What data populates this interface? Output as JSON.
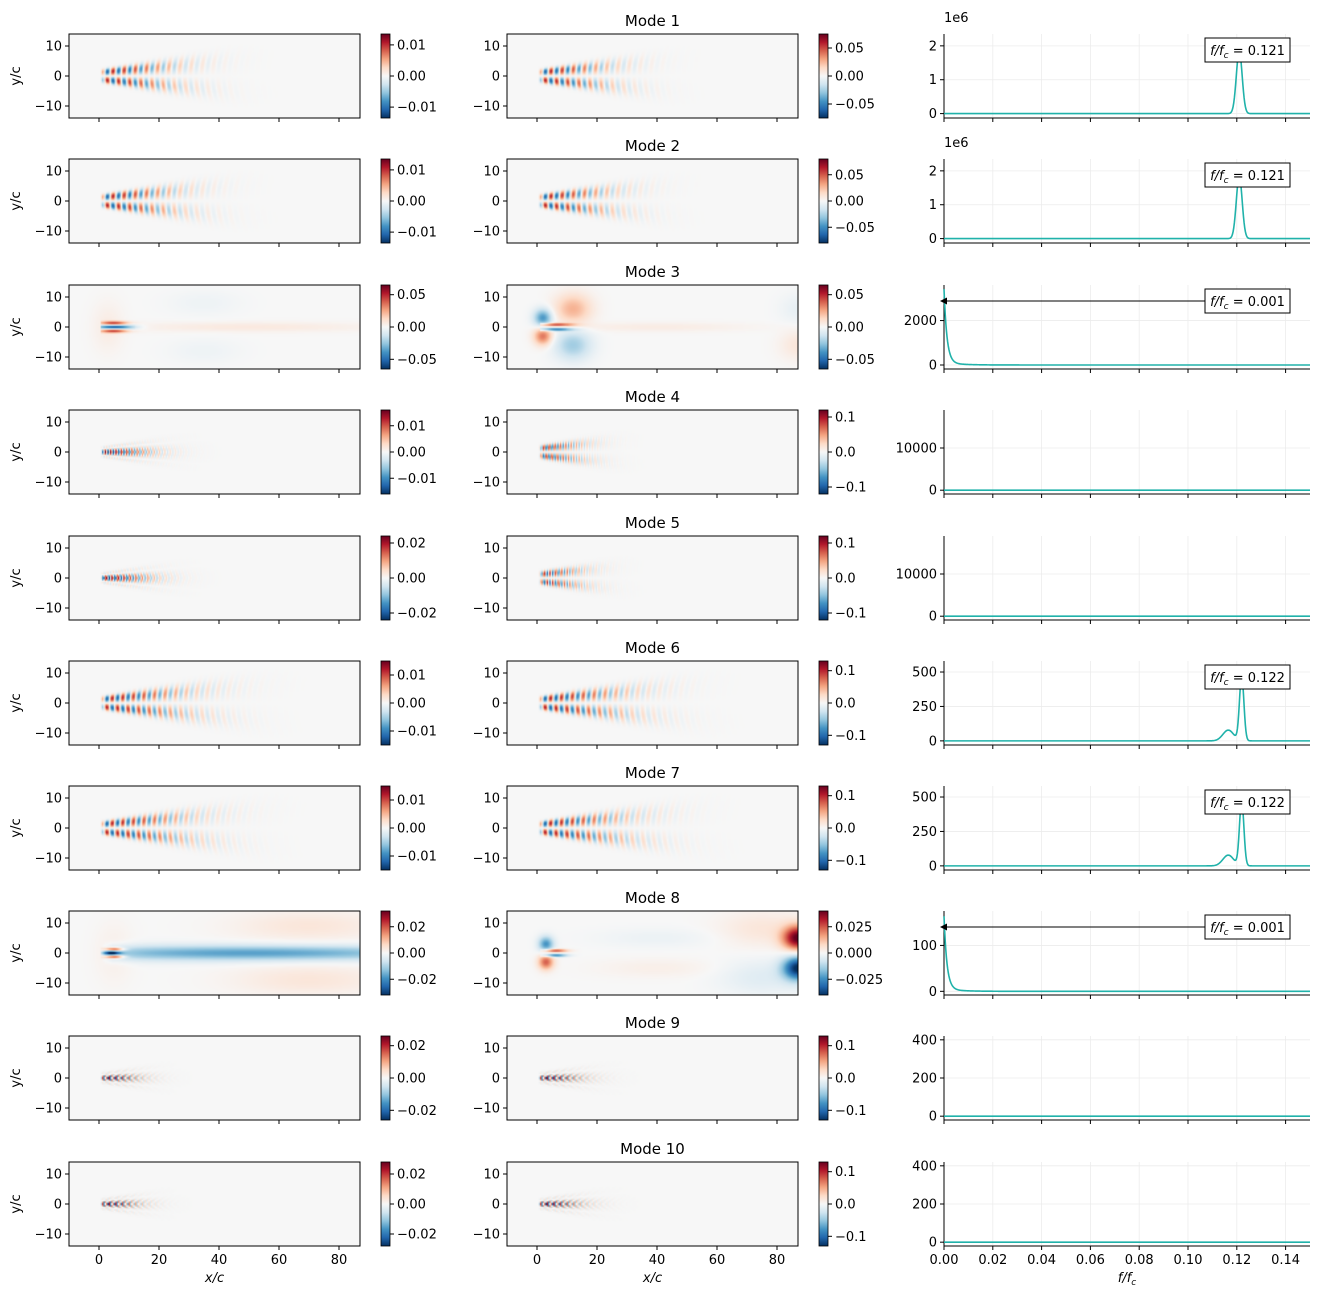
{
  "figure": {
    "xlabel_field": "x/c",
    "ylabel_field": "y/c",
    "xlabel_spec": "f/f_c",
    "x_ticks_field": [
      0,
      20,
      40,
      60,
      80
    ],
    "y_ticks_field": [
      -10,
      0,
      10
    ],
    "x_ticks_spec": [
      0.0,
      0.02,
      0.04,
      0.06,
      0.08,
      0.1,
      0.12,
      0.14
    ],
    "x_tick_labels_spec": [
      "0.00",
      "0.02",
      "0.04",
      "0.06",
      "0.08",
      "0.10",
      "0.12",
      "0.14"
    ],
    "colormap": "RdBu_r",
    "line_color": "#20b2aa"
  },
  "chart_data": [
    {
      "type": "heatmap",
      "panel": "field-left-1",
      "row": 1,
      "col": 1,
      "xlabel": "",
      "ylabel": "y/c",
      "xlim": [
        -10,
        87
      ],
      "ylim": [
        -14,
        14
      ],
      "colorbar_ticks": [
        -0.01,
        0.0,
        0.01
      ],
      "colorbar_tick_labels": [
        "−0.01",
        "0.00",
        "0.01"
      ],
      "colorbar_range": [
        -0.0135,
        0.0135
      ],
      "pattern": "wake-waves",
      "extent_x": 36,
      "wavelength": 3.7,
      "amplitude": 0.0135
    },
    {
      "type": "heatmap",
      "panel": "field-right-1",
      "row": 1,
      "col": 2,
      "title": "Mode 1",
      "xlim": [
        -10,
        87
      ],
      "ylim": [
        -14,
        14
      ],
      "colorbar_ticks": [
        -0.05,
        0.0,
        0.05
      ],
      "colorbar_tick_labels": [
        "−0.05",
        "0.00",
        "0.05"
      ],
      "colorbar_range": [
        -0.075,
        0.075
      ],
      "pattern": "wake-waves",
      "extent_x": 34,
      "wavelength": 3.7,
      "amplitude": 0.075
    },
    {
      "type": "line",
      "panel": "spectrum-1",
      "row": 1,
      "col": 3,
      "xlim": [
        0,
        0.15
      ],
      "ylim": [
        -0.13,
        2.35
      ],
      "y_ticks": [
        0,
        1,
        2
      ],
      "offset_text": "1e6",
      "peak_f": 0.121,
      "peak_height": 1.85,
      "peak_width": 0.0012,
      "annotation": "f/f_c = 0.121"
    },
    {
      "type": "heatmap",
      "panel": "field-left-2",
      "row": 2,
      "col": 1,
      "ylabel": "y/c",
      "xlim": [
        -10,
        87
      ],
      "ylim": [
        -14,
        14
      ],
      "colorbar_ticks": [
        -0.01,
        0.0,
        0.01
      ],
      "colorbar_tick_labels": [
        "−0.01",
        "0.00",
        "0.01"
      ],
      "colorbar_range": [
        -0.0135,
        0.0135
      ],
      "pattern": "wake-waves",
      "extent_x": 36,
      "wavelength": 3.7,
      "amplitude": 0.0135
    },
    {
      "type": "heatmap",
      "panel": "field-right-2",
      "row": 2,
      "col": 2,
      "title": "Mode 2",
      "xlim": [
        -10,
        87
      ],
      "ylim": [
        -14,
        14
      ],
      "colorbar_ticks": [
        -0.05,
        0.0,
        0.05
      ],
      "colorbar_tick_labels": [
        "−0.05",
        "0.00",
        "0.05"
      ],
      "colorbar_range": [
        -0.08,
        0.08
      ],
      "pattern": "wake-waves",
      "extent_x": 34,
      "wavelength": 3.7,
      "amplitude": 0.08
    },
    {
      "type": "line",
      "panel": "spectrum-2",
      "row": 2,
      "col": 3,
      "xlim": [
        0,
        0.15
      ],
      "ylim": [
        -0.13,
        2.35
      ],
      "y_ticks": [
        0,
        1,
        2
      ],
      "offset_text": "1e6",
      "peak_f": 0.121,
      "peak_height": 1.85,
      "peak_width": 0.0012,
      "annotation": "f/f_c = 0.121"
    },
    {
      "type": "heatmap",
      "panel": "field-left-3",
      "row": 3,
      "col": 1,
      "ylabel": "y/c",
      "xlim": [
        -10,
        87
      ],
      "ylim": [
        -14,
        14
      ],
      "colorbar_ticks": [
        -0.05,
        0.0,
        0.05
      ],
      "colorbar_tick_labels": [
        "−0.05",
        "0.00",
        "0.05"
      ],
      "colorbar_range": [
        -0.065,
        0.065
      ],
      "pattern": "mean-wake",
      "amplitude": 0.065
    },
    {
      "type": "heatmap",
      "panel": "field-right-3",
      "row": 3,
      "col": 2,
      "title": "Mode 3",
      "xlim": [
        -10,
        87
      ],
      "ylim": [
        -14,
        14
      ],
      "colorbar_ticks": [
        -0.05,
        0.0,
        0.05
      ],
      "colorbar_tick_labels": [
        "−0.05",
        "0.00",
        "0.05"
      ],
      "colorbar_range": [
        -0.065,
        0.065
      ],
      "pattern": "mean-wake-antisym",
      "amplitude": 0.065
    },
    {
      "type": "line",
      "panel": "spectrum-3",
      "row": 3,
      "col": 3,
      "xlim": [
        0,
        0.15
      ],
      "ylim": [
        -180,
        3600
      ],
      "y_ticks": [
        0,
        2000
      ],
      "peak_f": 0.0,
      "peak_height": 3300,
      "decay": "low-frequency",
      "annotation": "f/f_c = 0.001",
      "arrow": true
    },
    {
      "type": "heatmap",
      "panel": "field-left-4",
      "row": 4,
      "col": 1,
      "ylabel": "y/c",
      "xlim": [
        -10,
        87
      ],
      "ylim": [
        -14,
        14
      ],
      "colorbar_ticks": [
        -0.01,
        0.0,
        0.01
      ],
      "colorbar_tick_labels": [
        "−0.01",
        "0.00",
        "0.01"
      ],
      "colorbar_range": [
        -0.016,
        0.016
      ],
      "pattern": "chevrons",
      "extent_x": 26,
      "wavelength": 1.8,
      "amplitude": 0.016
    },
    {
      "type": "heatmap",
      "panel": "field-right-4",
      "row": 4,
      "col": 2,
      "title": "Mode 4",
      "xlim": [
        -10,
        87
      ],
      "ylim": [
        -14,
        14
      ],
      "colorbar_ticks": [
        -0.1,
        0.0,
        0.1
      ],
      "colorbar_tick_labels": [
        "−0.1",
        "0.0",
        "0.1"
      ],
      "colorbar_range": [
        -0.12,
        0.12
      ],
      "pattern": "wake-waves",
      "extent_x": 22,
      "wavelength": 1.8,
      "amplitude": 0.12
    },
    {
      "type": "line",
      "panel": "spectrum-4",
      "row": 4,
      "col": 3,
      "xlim": [
        0,
        0.15
      ],
      "ylim": [
        -900,
        19000
      ],
      "y_ticks": [
        0,
        10000
      ],
      "peak_f": null
    },
    {
      "type": "heatmap",
      "panel": "field-left-5",
      "row": 5,
      "col": 1,
      "ylabel": "y/c",
      "xlim": [
        -10,
        87
      ],
      "ylim": [
        -14,
        14
      ],
      "colorbar_ticks": [
        -0.02,
        0.0,
        0.02
      ],
      "colorbar_tick_labels": [
        "−0.02",
        "0.00",
        "0.02"
      ],
      "colorbar_range": [
        -0.024,
        0.024
      ],
      "pattern": "chevrons",
      "extent_x": 26,
      "wavelength": 2.0,
      "amplitude": 0.024
    },
    {
      "type": "heatmap",
      "panel": "field-right-5",
      "row": 5,
      "col": 2,
      "title": "Mode 5",
      "xlim": [
        -10,
        87
      ],
      "ylim": [
        -14,
        14
      ],
      "colorbar_ticks": [
        -0.1,
        0.0,
        0.1
      ],
      "colorbar_tick_labels": [
        "−0.1",
        "0.0",
        "0.1"
      ],
      "colorbar_range": [
        -0.12,
        0.12
      ],
      "pattern": "wake-waves",
      "extent_x": 22,
      "wavelength": 1.9,
      "amplitude": 0.12
    },
    {
      "type": "line",
      "panel": "spectrum-5",
      "row": 5,
      "col": 3,
      "xlim": [
        0,
        0.15
      ],
      "ylim": [
        -900,
        19000
      ],
      "y_ticks": [
        0,
        10000
      ],
      "peak_f": null
    },
    {
      "type": "heatmap",
      "panel": "field-left-6",
      "row": 6,
      "col": 1,
      "ylabel": "y/c",
      "xlim": [
        -10,
        87
      ],
      "ylim": [
        -14,
        14
      ],
      "colorbar_ticks": [
        -0.01,
        0.0,
        0.01
      ],
      "colorbar_tick_labels": [
        "−0.01",
        "0.00",
        "0.01"
      ],
      "colorbar_range": [
        -0.015,
        0.015
      ],
      "pattern": "wake-waves",
      "extent_x": 42,
      "wavelength": 3.5,
      "amplitude": 0.015
    },
    {
      "type": "heatmap",
      "panel": "field-right-6",
      "row": 6,
      "col": 2,
      "title": "Mode 6",
      "xlim": [
        -10,
        87
      ],
      "ylim": [
        -14,
        14
      ],
      "colorbar_ticks": [
        -0.1,
        0.0,
        0.1
      ],
      "colorbar_tick_labels": [
        "−0.1",
        "0.0",
        "0.1"
      ],
      "colorbar_range": [
        -0.13,
        0.13
      ],
      "pattern": "wake-waves",
      "extent_x": 42,
      "wavelength": 3.6,
      "amplitude": 0.13
    },
    {
      "type": "line",
      "panel": "spectrum-6",
      "row": 6,
      "col": 3,
      "xlim": [
        0,
        0.15
      ],
      "ylim": [
        -30,
        580
      ],
      "y_ticks": [
        0,
        250,
        500
      ],
      "peak_f": 0.122,
      "peak_height": 470,
      "peak_width": 0.0009,
      "side_f": 0.1165,
      "side_height": 78,
      "side_width": 0.0022,
      "annotation": "f/f_c = 0.122"
    },
    {
      "type": "heatmap",
      "panel": "field-left-7",
      "row": 7,
      "col": 1,
      "ylabel": "y/c",
      "xlim": [
        -10,
        87
      ],
      "ylim": [
        -14,
        14
      ],
      "colorbar_ticks": [
        -0.01,
        0.0,
        0.01
      ],
      "colorbar_tick_labels": [
        "−0.01",
        "0.00",
        "0.01"
      ],
      "colorbar_range": [
        -0.015,
        0.015
      ],
      "pattern": "wake-waves",
      "extent_x": 42,
      "wavelength": 3.5,
      "amplitude": 0.015
    },
    {
      "type": "heatmap",
      "panel": "field-right-7",
      "row": 7,
      "col": 2,
      "title": "Mode 7",
      "xlim": [
        -10,
        87
      ],
      "ylim": [
        -14,
        14
      ],
      "colorbar_ticks": [
        -0.1,
        0.0,
        0.1
      ],
      "colorbar_tick_labels": [
        "−0.1",
        "0.0",
        "0.1"
      ],
      "colorbar_range": [
        -0.13,
        0.13
      ],
      "pattern": "wake-waves",
      "extent_x": 42,
      "wavelength": 3.6,
      "amplitude": 0.13
    },
    {
      "type": "line",
      "panel": "spectrum-7",
      "row": 7,
      "col": 3,
      "xlim": [
        0,
        0.15
      ],
      "ylim": [
        -30,
        580
      ],
      "y_ticks": [
        0,
        250,
        500
      ],
      "peak_f": 0.122,
      "peak_height": 470,
      "peak_width": 0.0009,
      "side_f": 0.1165,
      "side_height": 78,
      "side_width": 0.0022,
      "annotation": "f/f_c = 0.122"
    },
    {
      "type": "heatmap",
      "panel": "field-left-8",
      "row": 8,
      "col": 1,
      "ylabel": "y/c",
      "xlim": [
        -10,
        87
      ],
      "ylim": [
        -14,
        14
      ],
      "colorbar_ticks": [
        -0.02,
        0.0,
        0.02
      ],
      "colorbar_tick_labels": [
        "−0.02",
        "0.00",
        "0.02"
      ],
      "colorbar_range": [
        -0.032,
        0.032
      ],
      "pattern": "long-wake",
      "amplitude": 0.032
    },
    {
      "type": "heatmap",
      "panel": "field-right-8",
      "row": 8,
      "col": 2,
      "title": "Mode 8",
      "xlim": [
        -10,
        87
      ],
      "ylim": [
        -14,
        14
      ],
      "colorbar_ticks": [
        -0.025,
        0.0,
        0.025
      ],
      "colorbar_tick_labels": [
        "−0.025",
        "0.000",
        "0.025"
      ],
      "colorbar_range": [
        -0.04,
        0.04
      ],
      "pattern": "outlet-antisym",
      "amplitude": 0.04
    },
    {
      "type": "line",
      "panel": "spectrum-8",
      "row": 8,
      "col": 3,
      "xlim": [
        0,
        0.15
      ],
      "ylim": [
        -8,
        175
      ],
      "y_ticks": [
        0,
        100
      ],
      "peak_f": 0.0,
      "peak_height": 158,
      "decay": "low-frequency",
      "annotation": "f/f_c = 0.001",
      "arrow": true
    },
    {
      "type": "heatmap",
      "panel": "field-left-9",
      "row": 9,
      "col": 1,
      "ylabel": "y/c",
      "xlim": [
        -10,
        87
      ],
      "ylim": [
        -14,
        14
      ],
      "colorbar_ticks": [
        -0.02,
        0.0,
        0.02
      ],
      "colorbar_tick_labels": [
        "−0.02",
        "0.00",
        "0.02"
      ],
      "colorbar_range": [
        -0.026,
        0.026
      ],
      "pattern": "chevrons",
      "extent_x": 20,
      "wavelength": 1.1,
      "amplitude": 0.026
    },
    {
      "type": "heatmap",
      "panel": "field-right-9",
      "row": 9,
      "col": 2,
      "title": "Mode 9",
      "xlim": [
        -10,
        87
      ],
      "ylim": [
        -14,
        14
      ],
      "colorbar_ticks": [
        -0.1,
        0.0,
        0.1
      ],
      "colorbar_tick_labels": [
        "−0.1",
        "0.0",
        "0.1"
      ],
      "colorbar_range": [
        -0.13,
        0.13
      ],
      "pattern": "chevrons",
      "extent_x": 22,
      "wavelength": 1.1,
      "amplitude": 0.13
    },
    {
      "type": "line",
      "panel": "spectrum-9",
      "row": 9,
      "col": 3,
      "xlim": [
        0,
        0.15
      ],
      "ylim": [
        -20,
        420
      ],
      "y_ticks": [
        0,
        200,
        400
      ],
      "peak_f": null
    },
    {
      "type": "heatmap",
      "panel": "field-left-10",
      "row": 10,
      "col": 1,
      "xlabel": "x/c",
      "ylabel": "y/c",
      "xlim": [
        -10,
        87
      ],
      "ylim": [
        -14,
        14
      ],
      "colorbar_ticks": [
        -0.02,
        0.0,
        0.02
      ],
      "colorbar_tick_labels": [
        "−0.02",
        "0.00",
        "0.02"
      ],
      "colorbar_range": [
        -0.028,
        0.028
      ],
      "pattern": "chevrons",
      "extent_x": 20,
      "wavelength": 1.1,
      "amplitude": 0.028
    },
    {
      "type": "heatmap",
      "panel": "field-right-10",
      "row": 10,
      "col": 2,
      "title": "Mode 10",
      "xlabel": "x/c",
      "xlim": [
        -10,
        87
      ],
      "ylim": [
        -14,
        14
      ],
      "colorbar_ticks": [
        -0.1,
        0.0,
        0.1
      ],
      "colorbar_tick_labels": [
        "−0.1",
        "0.0",
        "0.1"
      ],
      "colorbar_range": [
        -0.13,
        0.13
      ],
      "pattern": "chevrons",
      "extent_x": 22,
      "wavelength": 1.1,
      "amplitude": 0.13
    },
    {
      "type": "line",
      "panel": "spectrum-10",
      "row": 10,
      "col": 3,
      "xlabel": "f/f_c",
      "xlim": [
        0,
        0.15
      ],
      "ylim": [
        -20,
        420
      ],
      "y_ticks": [
        0,
        200,
        400
      ],
      "peak_f": null
    }
  ]
}
